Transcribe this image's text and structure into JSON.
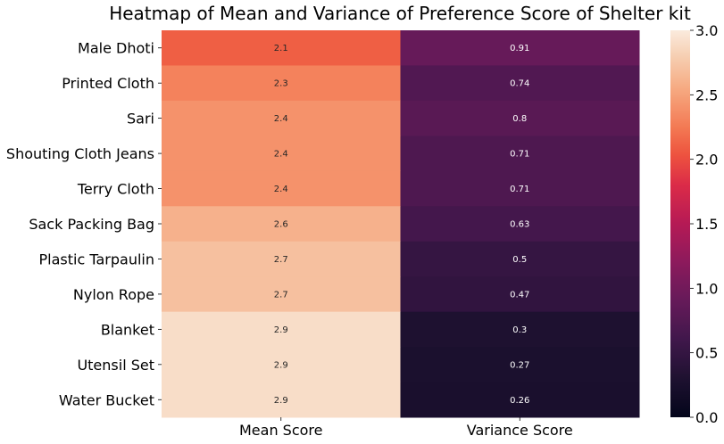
{
  "chart_data": {
    "type": "heatmap",
    "title": "Heatmap of Mean and Variance of Preference Score of Shelter kit",
    "rows": [
      "Male Dhoti",
      "Printed Cloth",
      "Sari",
      "Shouting Cloth Jeans",
      "Terry Cloth",
      "Sack Packing Bag",
      "Plastic Tarpaulin",
      "Nylon Rope",
      "Blanket",
      "Utensil Set",
      "Water Bucket"
    ],
    "columns": [
      "Mean Score",
      "Variance Score"
    ],
    "values": [
      [
        2.1,
        0.91
      ],
      [
        2.3,
        0.74
      ],
      [
        2.4,
        0.8
      ],
      [
        2.4,
        0.71
      ],
      [
        2.4,
        0.71
      ],
      [
        2.6,
        0.63
      ],
      [
        2.7,
        0.5
      ],
      [
        2.7,
        0.47
      ],
      [
        2.9,
        0.3
      ],
      [
        2.9,
        0.27
      ],
      [
        2.9,
        0.26
      ]
    ],
    "colorbar": {
      "range": [
        0,
        3
      ],
      "ticks": [
        "0.0",
        "0.5",
        "1.0",
        "1.5",
        "2.0",
        "2.5",
        "3.0"
      ],
      "colormap": "rocket"
    },
    "xlabel": "",
    "ylabel": ""
  }
}
